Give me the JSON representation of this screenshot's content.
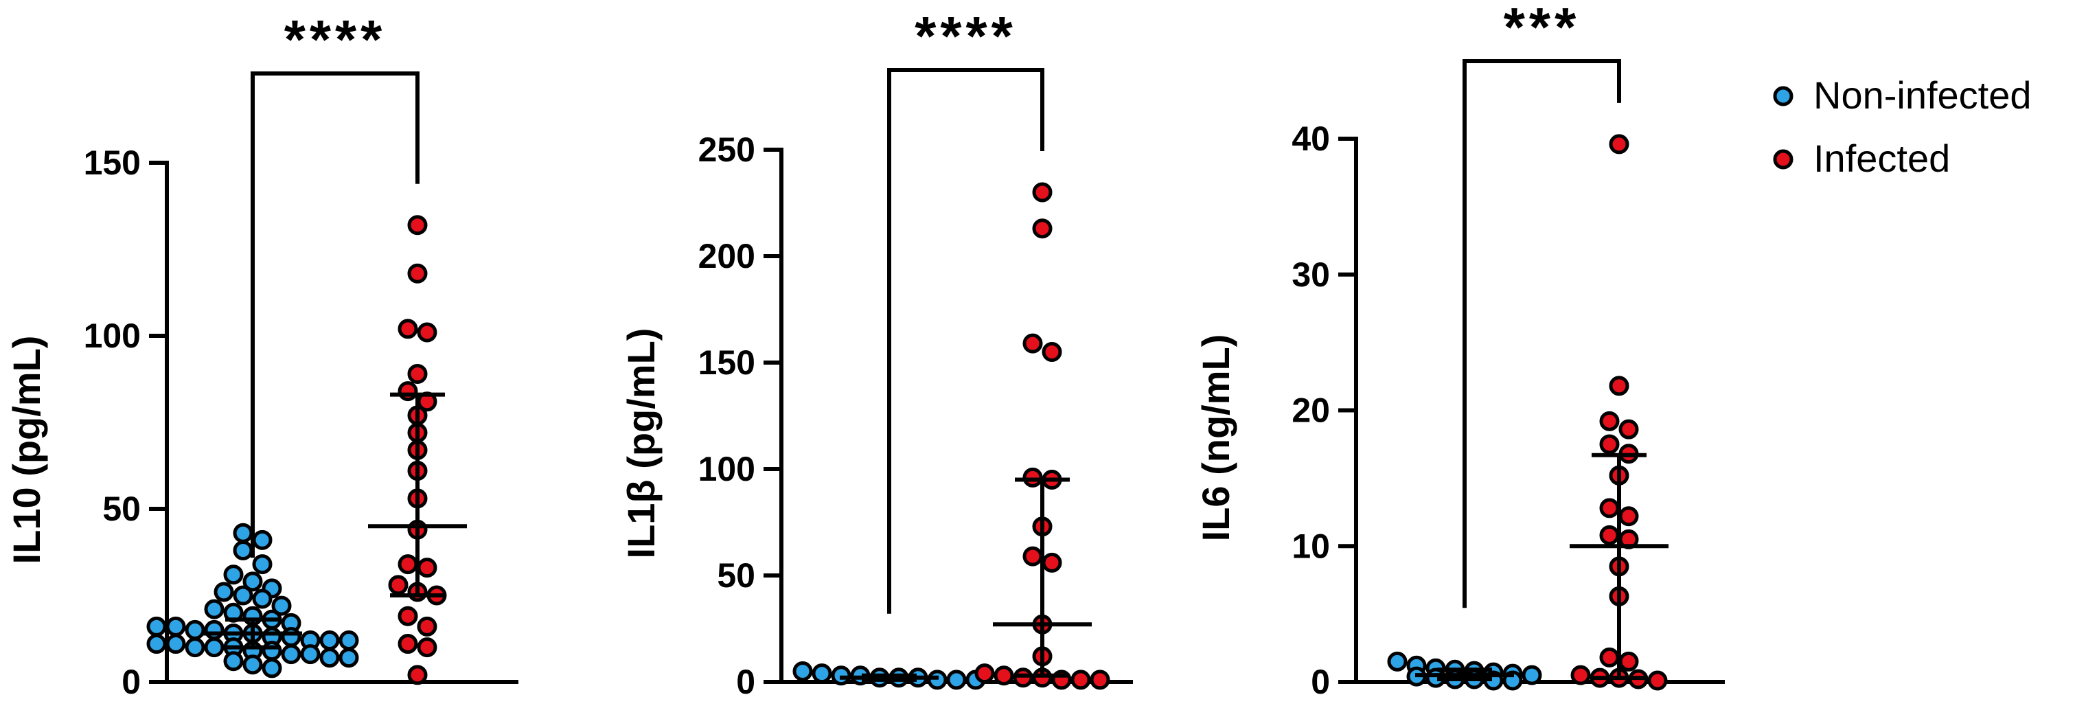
{
  "colors": {
    "non_infected": "#2ea3e6",
    "infected": "#e4101c"
  },
  "legend": {
    "placement": "top-right",
    "items": [
      {
        "label": "Non-infected",
        "color": "#2ea3e6"
      },
      {
        "label": "Infected",
        "color": "#e4101c"
      }
    ]
  },
  "chart_data": [
    {
      "type": "scatter",
      "ylabel": "IL10 (pg/mL)",
      "ylim": [
        0,
        150
      ],
      "yticks": [
        "0",
        "50",
        "100",
        "150"
      ],
      "significance": "****",
      "groups": [
        "Non-infected",
        "Infected"
      ],
      "series": [
        {
          "name": "Non-infected",
          "values": [
            4,
            5,
            6,
            7,
            7,
            8,
            8,
            9,
            9,
            10,
            10,
            10,
            11,
            11,
            12,
            12,
            12,
            13,
            13,
            14,
            14,
            15,
            15,
            16,
            16,
            17,
            18,
            19,
            20,
            21,
            22,
            24,
            25,
            26,
            27,
            29,
            31,
            34,
            38,
            41,
            43
          ],
          "summary": {
            "center": 14,
            "low": 10,
            "high": 18
          }
        },
        {
          "name": "Infected",
          "values": [
            2,
            10,
            11,
            16,
            19,
            25,
            26,
            28,
            33,
            34,
            44,
            53,
            61,
            67,
            72,
            77,
            81,
            84,
            89,
            101,
            102,
            118,
            132
          ],
          "summary": {
            "center": 45,
            "low": 25,
            "high": 83
          }
        }
      ]
    },
    {
      "type": "scatter",
      "ylabel": "IL1β (pg/mL)",
      "ylim": [
        0,
        250
      ],
      "yticks": [
        "0",
        "50",
        "100",
        "150",
        "200",
        "250"
      ],
      "significance": "****",
      "groups": [
        "Non-infected",
        "Infected"
      ],
      "series": [
        {
          "name": "Non-infected",
          "values": [
            1,
            1,
            1,
            2,
            2,
            2,
            3,
            3,
            4,
            5
          ],
          "summary": {
            "center": 2,
            "low": 1,
            "high": 3
          }
        },
        {
          "name": "Infected",
          "values": [
            1,
            1,
            1,
            2,
            2,
            3,
            4,
            12,
            27,
            56,
            59,
            73,
            95,
            96,
            155,
            159,
            213,
            230
          ],
          "summary": {
            "center": 27,
            "low": 3,
            "high": 95
          }
        }
      ]
    },
    {
      "type": "scatter",
      "ylabel": "IL6 (ng/mL)",
      "ylim": [
        0,
        40
      ],
      "yticks": [
        "0",
        "10",
        "20",
        "30",
        "40"
      ],
      "significance": "***",
      "groups": [
        "Non-infected",
        "Infected"
      ],
      "series": [
        {
          "name": "Non-infected",
          "values": [
            0.1,
            0.1,
            0.2,
            0.2,
            0.3,
            0.4,
            0.5,
            0.6,
            0.7,
            0.8,
            0.9,
            1.0,
            1.2,
            1.5
          ],
          "summary": {
            "center": 0.5,
            "low": 0.2,
            "high": 0.9
          }
        },
        {
          "name": "Infected",
          "values": [
            0.1,
            0.2,
            0.3,
            0.3,
            0.5,
            1.5,
            1.8,
            6.3,
            8.5,
            10.5,
            10.8,
            12.2,
            12.8,
            15.2,
            16.8,
            17.5,
            18.6,
            19.2,
            21.8,
            39.6
          ],
          "summary": {
            "center": 10,
            "low": 0.3,
            "high": 16.7
          }
        }
      ]
    }
  ]
}
